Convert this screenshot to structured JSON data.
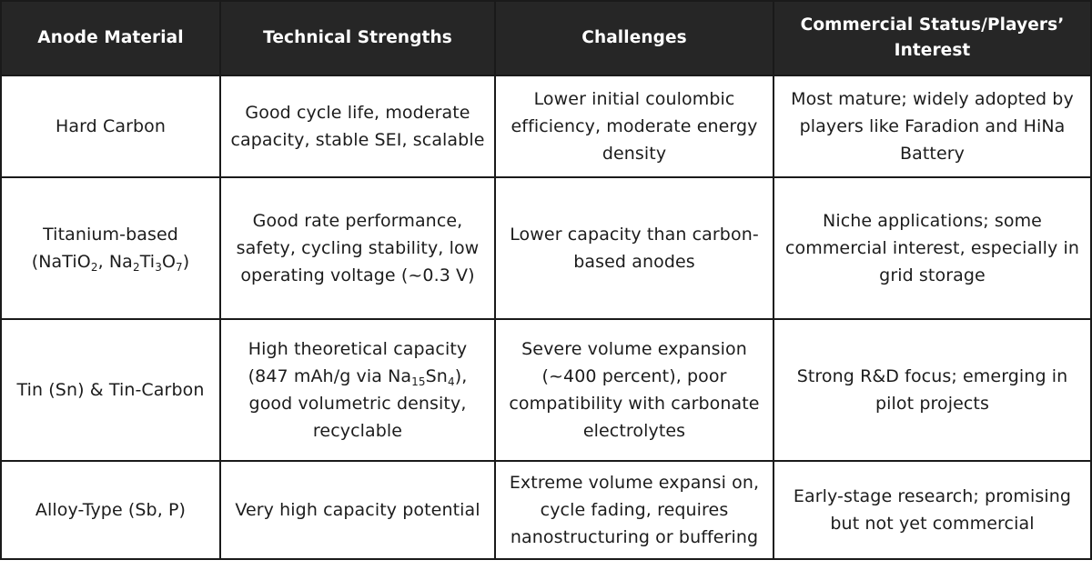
{
  "headers": [
    "Anode Material",
    "Technical Strengths",
    "Challenges",
    "Commercial Status/Players’ Interest"
  ],
  "rows": [
    {
      "material": "Hard Carbon",
      "strengths": "Good cycle life, moderate capacity, stable SEI, scalable",
      "challenges": "Lower initial coulombic efficiency, moderate energy density",
      "status": "Most mature; widely adopted by players like Faradion and HiNa Battery"
    },
    {
      "material_line1": "Titanium-based",
      "material_line2": {
        "open": "(NaTiO",
        "sub1": "2",
        "mid1": ", Na",
        "sub2": "2",
        "mid2": "Ti",
        "sub3": "3",
        "mid3": "O",
        "sub4": "7",
        "close": ")"
      },
      "strengths": "Good rate performance, safety, cycling stability, low operating voltage (~0.3 V)",
      "challenges": "Lower capacity than carbon-based anodes",
      "status": "Niche applications; some commercial interest, especially in grid storage"
    },
    {
      "material": "Tin (Sn) & Tin-Carbon",
      "strengths": {
        "a": "High theoretical capacity (847 mAh/g via Na",
        "sub1": "15",
        "b": "Sn",
        "sub2": "4",
        "c": "), good volumetric density, recyclable"
      },
      "challenges": "Severe volume expansion (~400 percent), poor compatibility with carbonate electrolytes",
      "status": "Strong R&D focus; emerging in pilot projects"
    },
    {
      "material": "Alloy-Type (Sb, P)",
      "strengths": "Very high capacity potential",
      "challenges": "Extreme volume expansi on, cycle fading, requires nanostructuring or buffering",
      "status": "Early-stage research; promising but not yet commercial"
    }
  ]
}
